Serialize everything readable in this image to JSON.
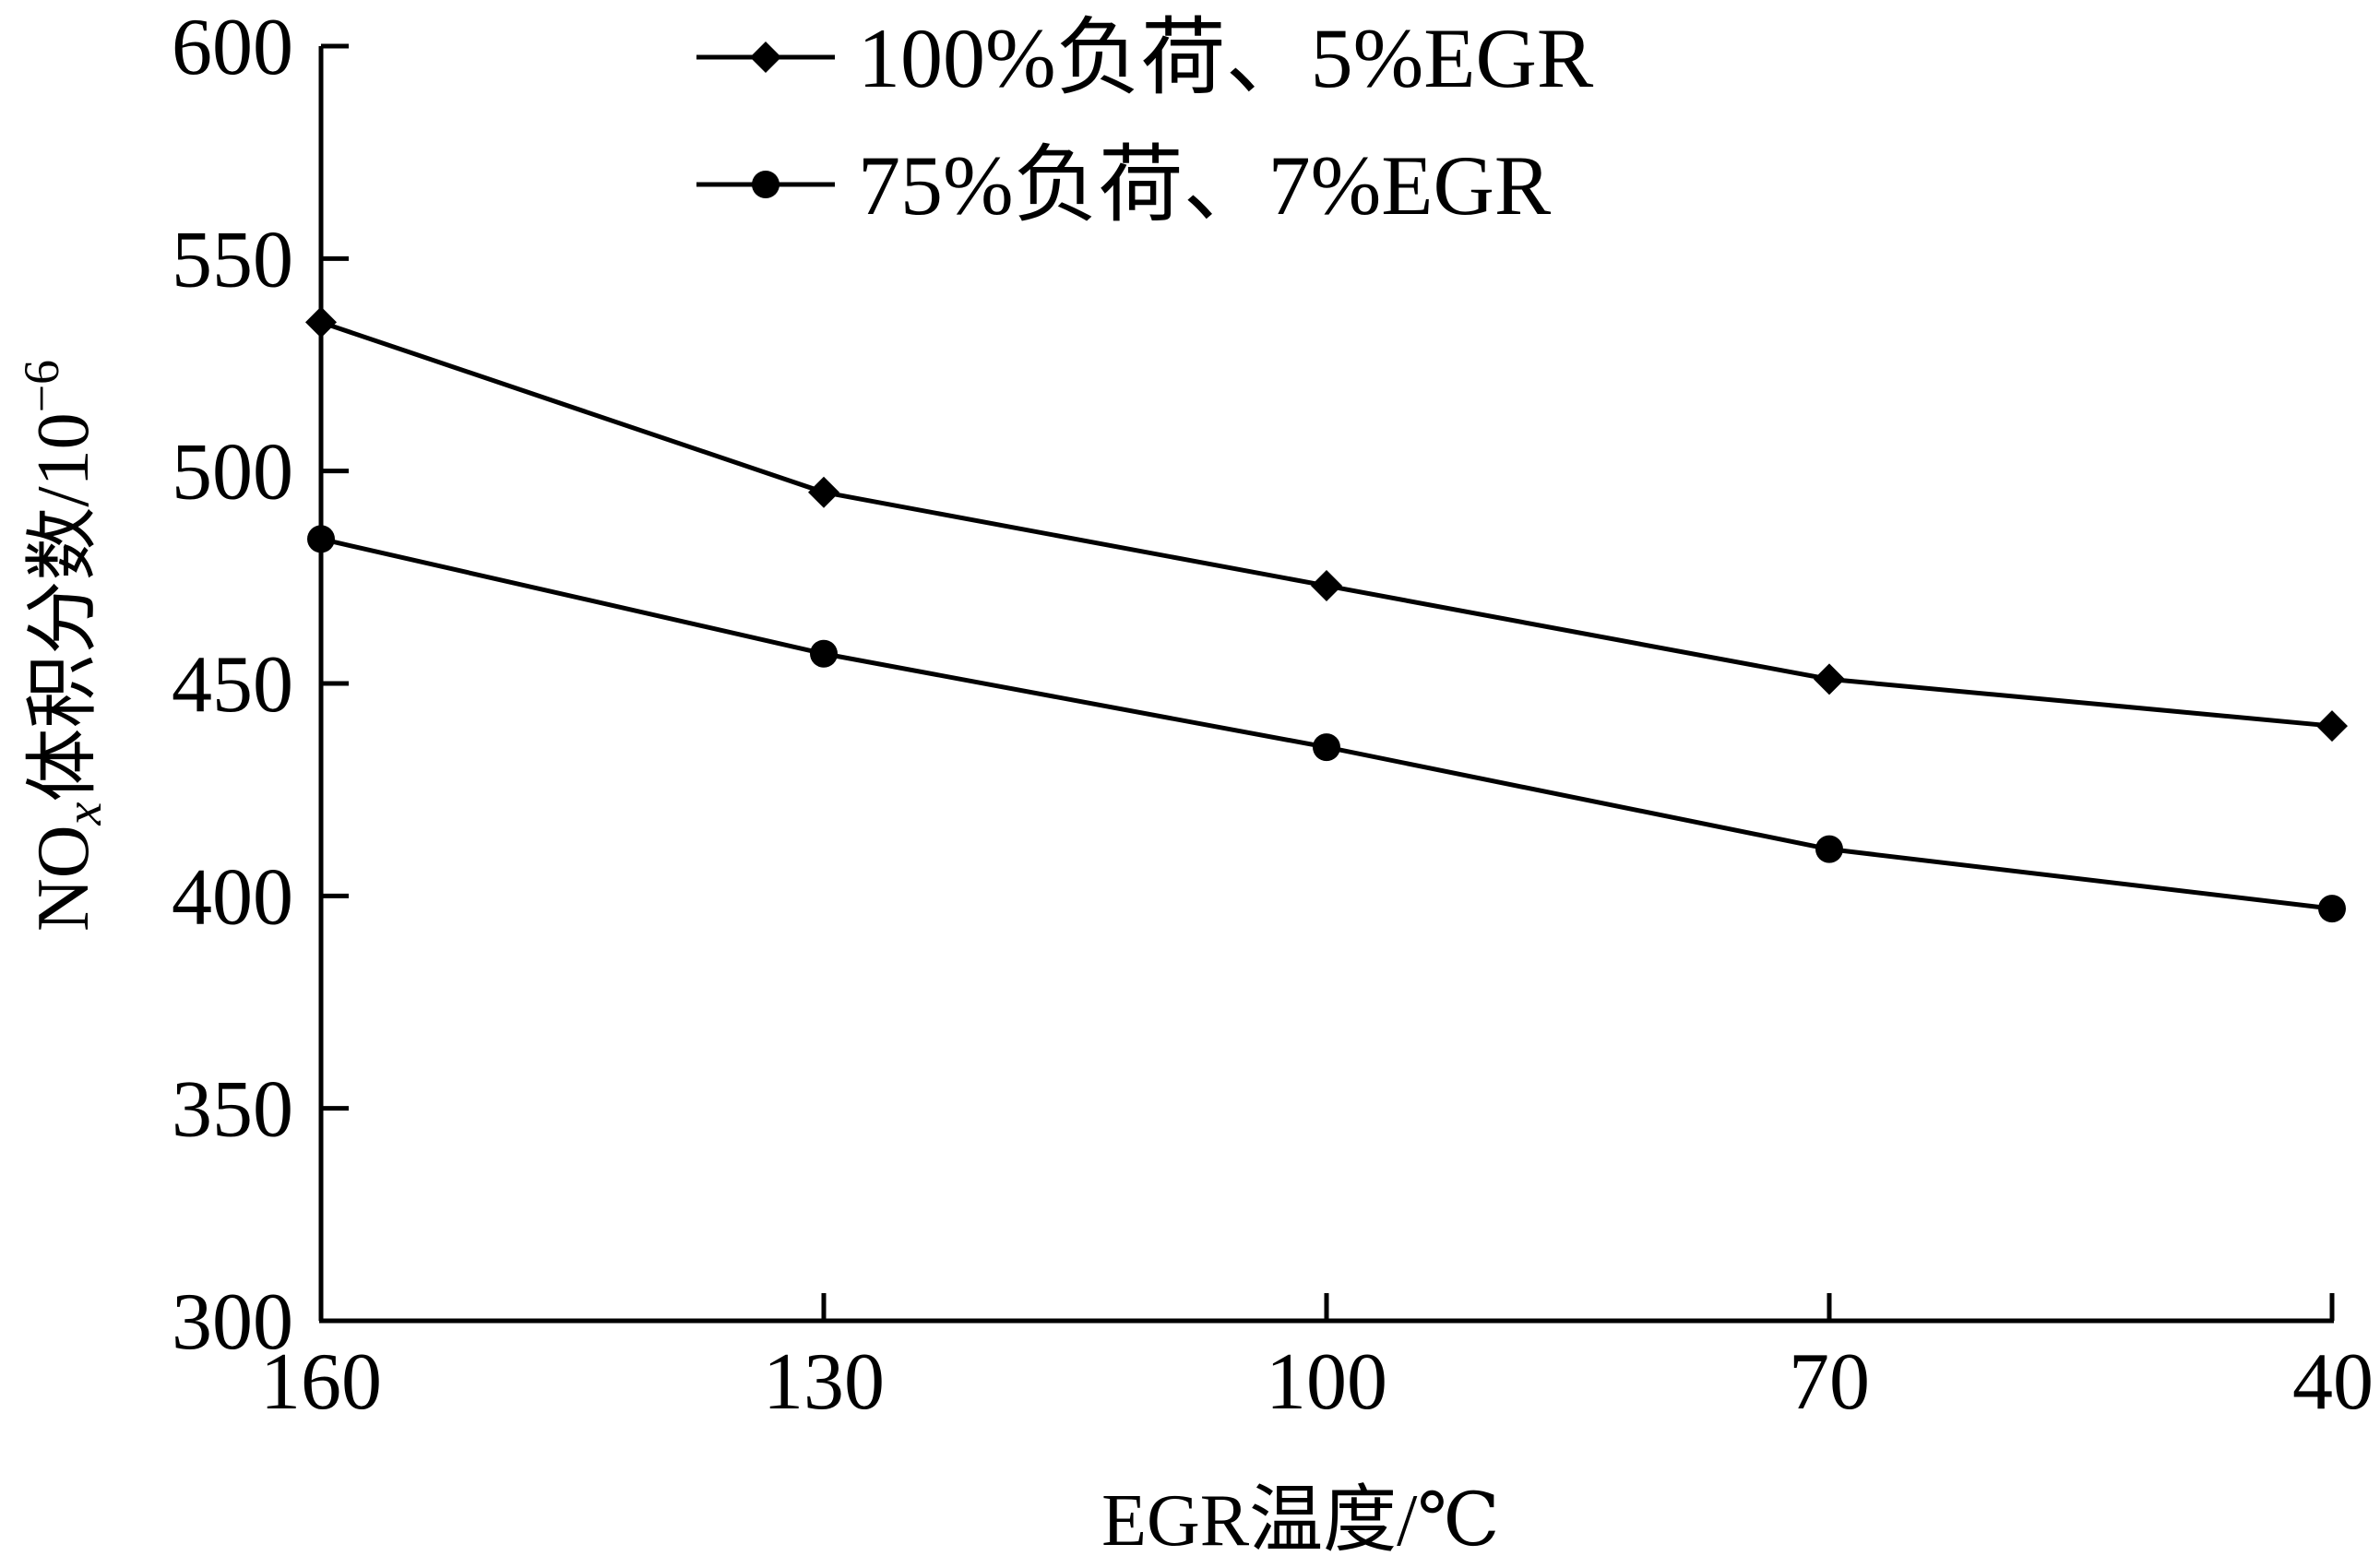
{
  "chart_data": {
    "type": "line",
    "title": "",
    "xlabel": "EGR温度/℃",
    "ylabel": {
      "main": "NO",
      "sub": "x",
      "suffix": "体积分数/10",
      "sup": "−6"
    },
    "x": [
      160,
      130,
      100,
      70,
      40
    ],
    "x_ticks": [
      "160",
      "130",
      "100",
      "70",
      "40"
    ],
    "x_reversed": true,
    "xlim": [
      160,
      40
    ],
    "ylim": [
      300,
      600
    ],
    "y_ticks": [
      "300",
      "350",
      "400",
      "450",
      "500",
      "550",
      "600"
    ],
    "grid": false,
    "legend_position": "top-center",
    "series": [
      {
        "name": "100%负荷、5%EGR",
        "marker": "diamond",
        "color": "#000000",
        "values": [
          535,
          495,
          473,
          451,
          440
        ]
      },
      {
        "name": "75%负荷、7%EGR",
        "marker": "circle",
        "color": "#000000",
        "values": [
          484,
          457,
          435,
          411,
          397
        ]
      }
    ]
  }
}
